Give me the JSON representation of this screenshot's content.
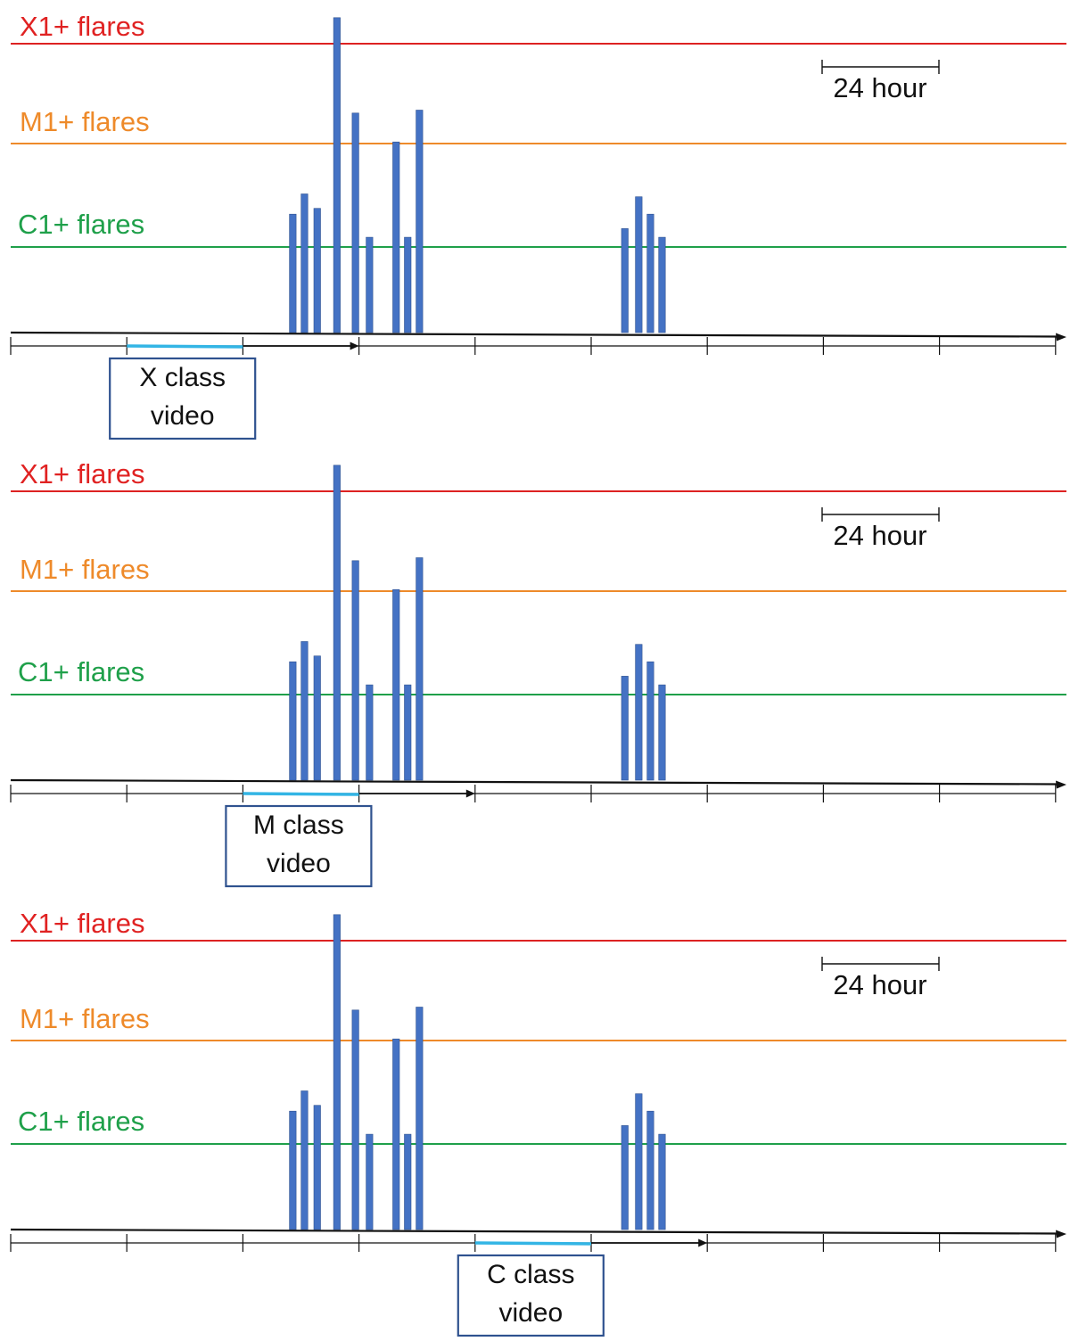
{
  "colors": {
    "x_line": "#dd2222",
    "x_label": "#e02222",
    "m_line": "#ee8a2a",
    "m_label": "#ee8a2a",
    "c_line": "#1fa04a",
    "c_label": "#1fa04a",
    "bar": "#4472c4",
    "bar_edge": "#2f528f",
    "window": "#33b5e5",
    "box_border": "#2f528f",
    "axis": "#111111"
  },
  "panels": [
    {
      "thresholds": {
        "x_label": "X1+ flares",
        "m_label": "M1+ flares",
        "c_label": "C1+ flares"
      },
      "scale_label": "24 hour",
      "video_label_line1": "X class",
      "video_label_line2": "video",
      "window_start_day": 1,
      "window_end_day": 2,
      "arrow_end_day": 3
    },
    {
      "thresholds": {
        "x_label": "X1+ flares",
        "m_label": "M1+ flares",
        "c_label": "C1+ flares"
      },
      "scale_label": "24 hour",
      "video_label_line1": "M class",
      "video_label_line2": "video",
      "window_start_day": 2,
      "window_end_day": 3,
      "arrow_end_day": 4
    },
    {
      "thresholds": {
        "x_label": "X1+ flares",
        "m_label": "M1+ flares",
        "c_label": "C1+ flares"
      },
      "scale_label": "24 hour",
      "video_label_line1": "C class",
      "video_label_line2": "video",
      "window_start_day": 4,
      "window_end_day": 5,
      "arrow_end_day": 6
    }
  ],
  "flares": [
    {
      "day": 2.43,
      "level": 0.41
    },
    {
      "day": 2.53,
      "level": 0.48
    },
    {
      "day": 2.64,
      "level": 0.43
    },
    {
      "day": 2.81,
      "level": 1.09
    },
    {
      "day": 2.97,
      "level": 0.76
    },
    {
      "day": 3.09,
      "level": 0.33
    },
    {
      "day": 3.32,
      "level": 0.66
    },
    {
      "day": 3.42,
      "level": 0.33
    },
    {
      "day": 3.52,
      "level": 0.77
    },
    {
      "day": 5.29,
      "level": 0.36
    },
    {
      "day": 5.41,
      "level": 0.47
    },
    {
      "day": 5.51,
      "level": 0.41
    },
    {
      "day": 5.61,
      "level": 0.33
    }
  ],
  "tick_count": 10
}
